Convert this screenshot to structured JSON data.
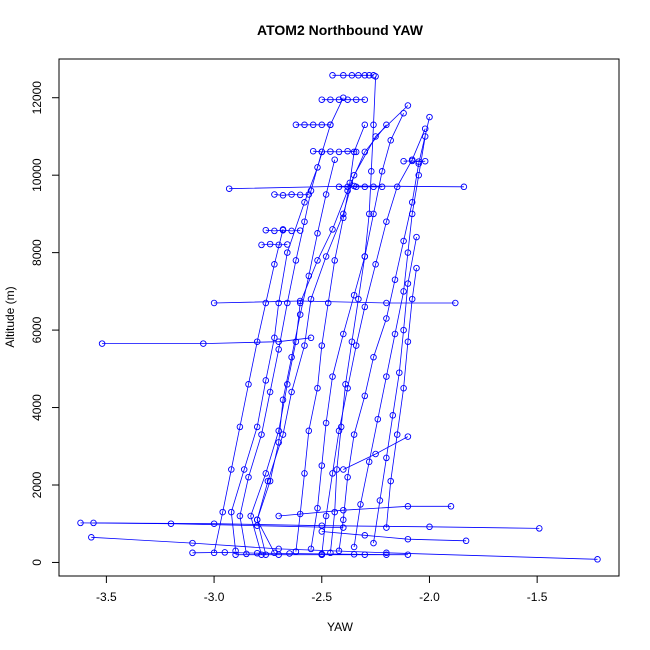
{
  "chart_data": {
    "type": "line",
    "title": "ATOM2 Northbound YAW",
    "xlabel": "YAW",
    "ylabel": "Altitude (m)",
    "xlim": [
      -3.72,
      -1.12
    ],
    "ylim": [
      -350,
      13000
    ],
    "x_ticks": [
      -3.5,
      -3.0,
      -2.5,
      -2.0,
      -1.5
    ],
    "x_tick_labels": [
      "-3.5",
      "-3.0",
      "-2.5",
      "-2.0",
      "-1.5"
    ],
    "y_ticks": [
      0,
      2000,
      4000,
      6000,
      8000,
      10000,
      12000
    ],
    "y_tick_labels": [
      "0",
      "2000",
      "4000",
      "6000",
      "8000",
      "10000",
      "12000"
    ],
    "grid": false,
    "legend": "none",
    "colors": {
      "series": "#0000ff",
      "axis": "#000000",
      "background": "#ffffff"
    },
    "series": [
      {
        "x": [
          -2.78,
          -2.83,
          -2.76,
          -2.7,
          -2.66,
          -2.62,
          -2.6,
          -2.52,
          -2.45,
          -2.38,
          -2.3,
          -2.2
        ],
        "y": [
          200,
          1200,
          2300,
          3400,
          4600,
          5700,
          6700,
          7800,
          8600,
          9600,
          10600,
          11300
        ]
      },
      {
        "x": [
          -2.72,
          -2.8,
          -2.75,
          -2.68,
          -2.64,
          -2.58,
          -2.55,
          -2.48,
          -2.4,
          -2.35,
          -2.25,
          -2.1
        ],
        "y": [
          250,
          1100,
          2100,
          3300,
          4400,
          5600,
          6800,
          7900,
          9000,
          10000,
          11000,
          11800
        ]
      },
      {
        "x": [
          -2.9,
          -2.92,
          -2.86,
          -2.8,
          -2.76,
          -2.72,
          -2.7,
          -2.66,
          -2.58,
          -2.52,
          -2.46,
          -2.4
        ],
        "y": [
          300,
          1300,
          2400,
          3500,
          4700,
          5800,
          6700,
          8000,
          9300,
          10200,
          11300,
          12000
        ]
      },
      {
        "x": [
          -2.5,
          -2.48,
          -2.45,
          -2.42,
          -2.38,
          -2.34,
          -2.3,
          -2.25,
          -2.2,
          -2.15,
          -2.08,
          -2.02
        ],
        "y": [
          200,
          1200,
          2300,
          3400,
          4500,
          5600,
          6600,
          7700,
          8800,
          9700,
          10400,
          11200
        ]
      },
      {
        "x": [
          -2.55,
          -2.52,
          -2.5,
          -2.48,
          -2.45,
          -2.4,
          -2.35,
          -2.3,
          -2.26,
          -2.22,
          -2.18,
          -2.12
        ],
        "y": [
          350,
          1400,
          2500,
          3600,
          4800,
          5900,
          6900,
          7900,
          9000,
          10100,
          10900,
          11600
        ]
      },
      {
        "x": [
          -2.46,
          -2.44,
          -2.43,
          -2.41,
          -2.39,
          -2.36,
          -2.33,
          -2.3,
          -2.28,
          -2.27,
          -2.26,
          -2.25
        ],
        "y": [
          250,
          1300,
          2400,
          3500,
          4600,
          5700,
          6800,
          7900,
          9000,
          10100,
          11300,
          12550
        ]
      },
      {
        "x": [
          -2.42,
          -2.4,
          -2.38,
          -2.35,
          -2.3,
          -2.26,
          -2.2,
          -2.16,
          -2.12,
          -2.08,
          -2.05,
          -2.0
        ],
        "y": [
          300,
          1100,
          2200,
          3300,
          4300,
          5300,
          6300,
          7300,
          8300,
          9300,
          10300,
          11500
        ]
      },
      {
        "x": [
          -2.62,
          -2.6,
          -2.58,
          -2.56,
          -2.52,
          -2.5,
          -2.47,
          -2.44,
          -2.4,
          -2.37,
          -2.35,
          -2.3
        ],
        "y": [
          280,
          1250,
          2300,
          3400,
          4500,
          5600,
          6700,
          7800,
          8900,
          9800,
          10600,
          11300
        ]
      },
      {
        "x": [
          -2.35,
          -2.32,
          -2.28,
          -2.24,
          -2.2,
          -2.16,
          -2.12,
          -2.1,
          -2.08,
          -2.05,
          -2.02
        ],
        "y": [
          400,
          1500,
          2600,
          3700,
          4800,
          5900,
          7000,
          8000,
          9000,
          10000,
          11000
        ]
      },
      {
        "x": [
          -2.85,
          -2.88,
          -2.84,
          -2.78,
          -2.74,
          -2.7,
          -2.66,
          -2.62,
          -2.58,
          -2.55,
          -2.5
        ],
        "y": [
          220,
          1200,
          2200,
          3300,
          4400,
          5500,
          6700,
          7800,
          8800,
          9600,
          10600
        ]
      },
      {
        "x": [
          -2.76,
          -2.8,
          -2.74,
          -2.7,
          -2.68,
          -2.64,
          -2.6,
          -2.56,
          -2.52,
          -2.48,
          -2.44
        ],
        "y": [
          200,
          1100,
          2100,
          3100,
          4200,
          5300,
          6400,
          7400,
          8500,
          9500,
          10400
        ]
      },
      {
        "x": [
          -3.0,
          -2.96,
          -2.92,
          -2.88,
          -2.84,
          -2.8,
          -2.76,
          -2.72,
          -2.68
        ],
        "y": [
          250,
          1300,
          2400,
          3500,
          4600,
          5700,
          6700,
          7700,
          8600
        ]
      },
      {
        "x": [
          -2.26,
          -2.23,
          -2.2,
          -2.17,
          -2.14,
          -2.12,
          -2.1,
          -2.06
        ],
        "y": [
          500,
          1600,
          2700,
          3800,
          4900,
          6000,
          7200,
          8400
        ]
      },
      {
        "x": [
          -2.2,
          -2.18,
          -2.15,
          -2.12,
          -2.1,
          -2.08,
          -2.06
        ],
        "y": [
          900,
          2100,
          3300,
          4500,
          5700,
          6800,
          7600
        ]
      },
      {
        "x": [
          -2.93,
          -2.35,
          -1.84
        ],
        "y": [
          9650,
          9720,
          9700
        ]
      },
      {
        "x": [
          -3.52,
          -3.05,
          -2.7,
          -2.55
        ],
        "y": [
          5650,
          5650,
          5700,
          5800
        ]
      },
      {
        "x": [
          -3.62,
          -3.2,
          -2.8,
          -2.4
        ],
        "y": [
          1020,
          1000,
          950,
          900
        ]
      },
      {
        "x": [
          -3.56,
          -3.0,
          -2.5,
          -2.0,
          -1.49
        ],
        "y": [
          1020,
          1000,
          950,
          920,
          880
        ]
      },
      {
        "x": [
          -3.57,
          -3.1,
          -2.7,
          -2.2,
          -1.22
        ],
        "y": [
          650,
          500,
          350,
          250,
          80
        ]
      },
      {
        "x": [
          -3.0,
          -2.6,
          -2.2,
          -1.88
        ],
        "y": [
          6700,
          6750,
          6700,
          6700
        ]
      },
      {
        "x": [
          -2.7,
          -2.4,
          -2.1,
          -1.9
        ],
        "y": [
          1200,
          1350,
          1450,
          1450
        ]
      },
      {
        "x": [
          -2.5,
          -2.3,
          -2.1,
          -1.83
        ],
        "y": [
          800,
          700,
          600,
          560
        ]
      },
      {
        "x": [
          -2.9,
          -2.7,
          -2.5,
          -2.3,
          -2.1
        ],
        "y": [
          200,
          200,
          200,
          200,
          200
        ]
      },
      {
        "x": [
          -3.1,
          -2.95,
          -2.8,
          -2.65,
          -2.5,
          -2.35,
          -2.2
        ],
        "y": [
          250,
          260,
          240,
          230,
          220,
          210,
          200
        ]
      },
      {
        "x": [
          -2.1,
          -2.25,
          -2.4
        ],
        "y": [
          3250,
          2800,
          2400
        ]
      },
      {
        "x": [
          -2.45,
          -2.4,
          -2.36,
          -2.33,
          -2.3,
          -2.28,
          -2.26
        ],
        "y": [
          12580,
          12580,
          12580,
          12580,
          12580,
          12580,
          12580
        ]
      },
      {
        "x": [
          -2.5,
          -2.46,
          -2.42,
          -2.38,
          -2.34,
          -2.3
        ],
        "y": [
          11950,
          11950,
          11950,
          11950,
          11950,
          11950
        ]
      },
      {
        "x": [
          -2.62,
          -2.58,
          -2.54,
          -2.5,
          -2.46
        ],
        "y": [
          11300,
          11300,
          11300,
          11300,
          11300
        ]
      },
      {
        "x": [
          -2.54,
          -2.5,
          -2.46,
          -2.42,
          -2.38,
          -2.34
        ],
        "y": [
          10620,
          10600,
          10610,
          10600,
          10620,
          10600
        ]
      },
      {
        "x": [
          -2.12,
          -2.08,
          -2.05,
          -2.02
        ],
        "y": [
          10360,
          10370,
          10350,
          10360
        ]
      },
      {
        "x": [
          -2.42,
          -2.38,
          -2.34,
          -2.3,
          -2.26,
          -2.22
        ],
        "y": [
          9700,
          9700,
          9700,
          9700,
          9700,
          9700
        ]
      },
      {
        "x": [
          -2.76,
          -2.72,
          -2.68,
          -2.64,
          -2.6
        ],
        "y": [
          8580,
          8560,
          8580,
          8560,
          8570
        ]
      },
      {
        "x": [
          -2.72,
          -2.68,
          -2.64,
          -2.6,
          -2.56
        ],
        "y": [
          9500,
          9480,
          9500,
          9490,
          9500
        ]
      },
      {
        "x": [
          -2.78,
          -2.74,
          -2.7,
          -2.66
        ],
        "y": [
          8200,
          8220,
          8200,
          8210
        ]
      }
    ]
  }
}
